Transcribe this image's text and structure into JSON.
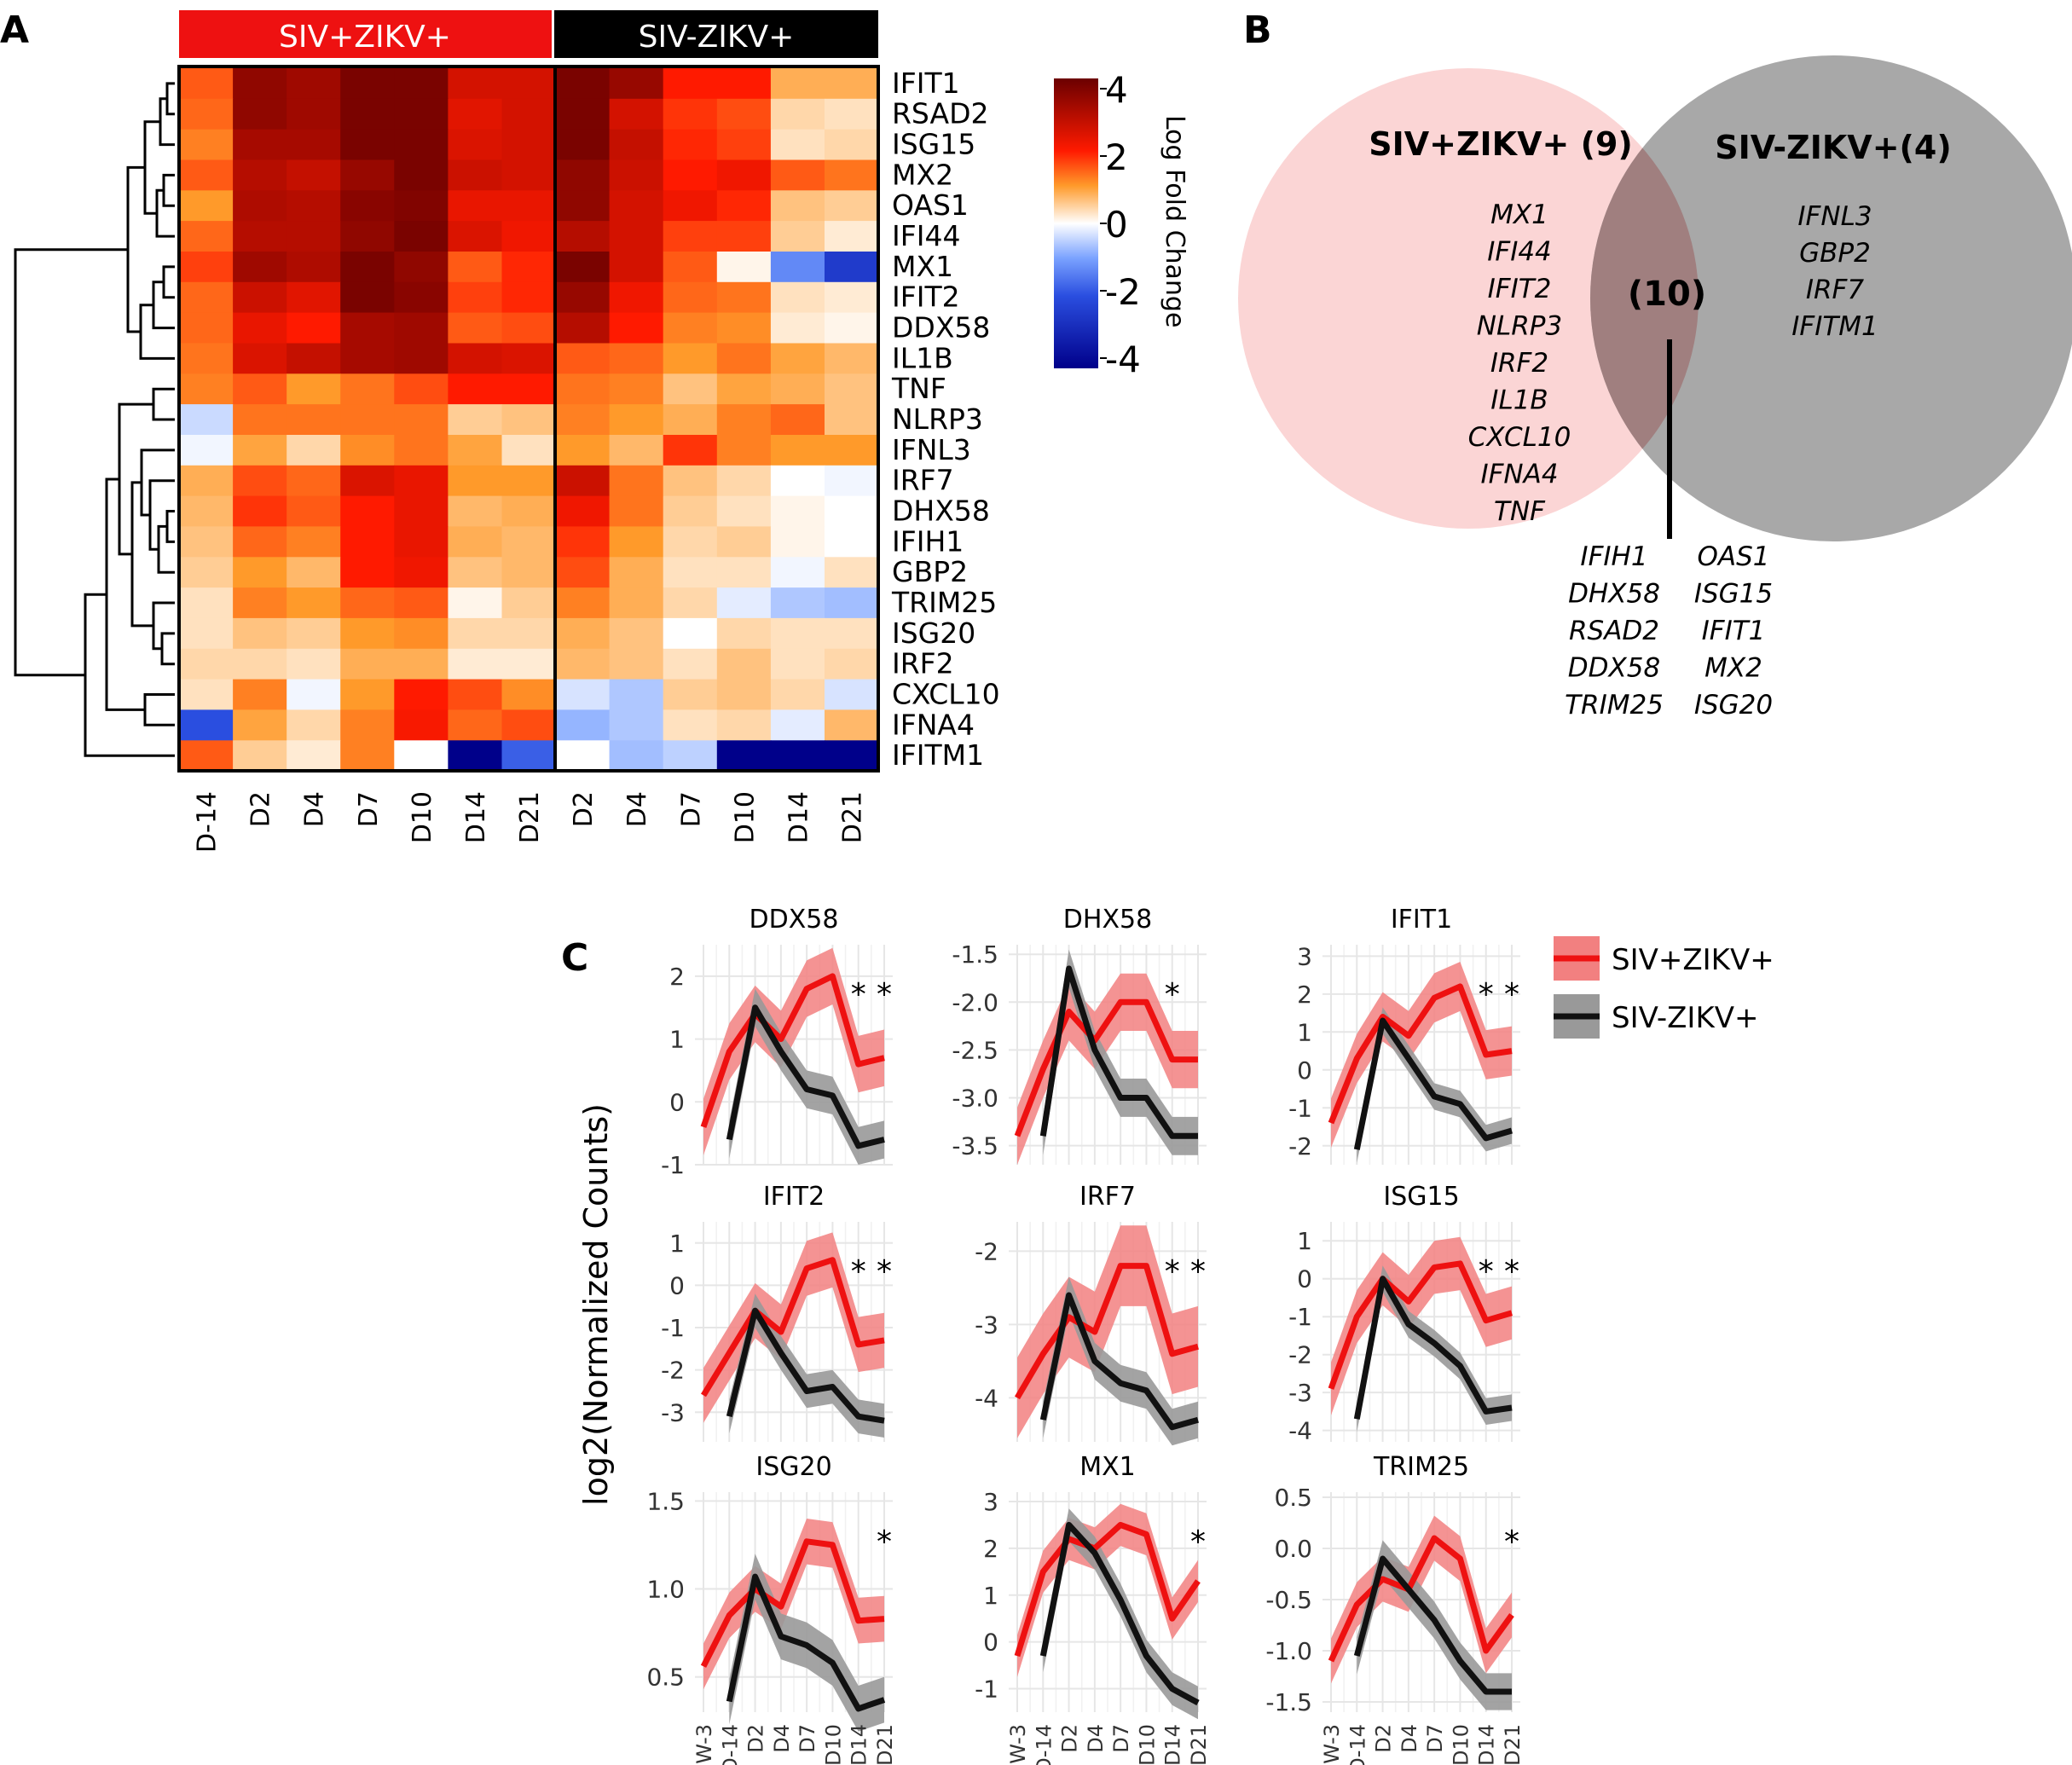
{
  "panel_labels": {
    "a": "A",
    "b": "B",
    "c": "C"
  },
  "colors": {
    "red": "#ee1111",
    "black": "#111111",
    "band_red": "#f28080",
    "band_black": "#999999",
    "venn_left": "#fbd5d5",
    "venn_right": "#a8a8a8",
    "venn_overlap": "#a07f7f"
  },
  "chart_data": [
    {
      "type": "heatmap",
      "group_labels": [
        "SIV+ZIKV+",
        "SIV-ZIKV+"
      ],
      "columns": [
        "D-14",
        "D2",
        "D4",
        "D7",
        "D10",
        "D14",
        "D21",
        "D2",
        "D4",
        "D7",
        "D10",
        "D14",
        "D21"
      ],
      "rows": [
        "IFIT1",
        "RSAD2",
        "ISG15",
        "MX2",
        "OAS1",
        "IFI44",
        "MX1",
        "IFIT2",
        "DDX58",
        "IL1B",
        "TNF",
        "NLRP3",
        "IFNL3",
        "IRF7",
        "DHX58",
        "IFIH1",
        "GBP2",
        "TRIM25",
        "ISG20",
        "IRF2",
        "CXCL10",
        "IFNA4",
        "IFITM1"
      ],
      "values": [
        [
          1.5,
          3.5,
          3.3,
          3.8,
          3.8,
          2.6,
          2.6,
          3.8,
          3.4,
          2.0,
          2.0,
          0.8,
          0.8
        ],
        [
          1.4,
          3.5,
          3.3,
          3.8,
          3.8,
          2.4,
          2.6,
          3.8,
          2.6,
          1.8,
          1.6,
          0.4,
          0.3
        ],
        [
          1.2,
          3.2,
          3.2,
          3.8,
          3.8,
          2.5,
          2.6,
          3.8,
          2.8,
          1.9,
          1.7,
          0.3,
          0.4
        ],
        [
          1.5,
          3.0,
          2.8,
          3.4,
          3.8,
          2.7,
          2.6,
          3.5,
          2.7,
          2.0,
          2.2,
          1.5,
          1.3
        ],
        [
          1.0,
          3.1,
          3.0,
          3.6,
          3.7,
          2.3,
          2.3,
          3.5,
          2.6,
          2.2,
          1.9,
          0.6,
          0.5
        ],
        [
          1.4,
          3.0,
          3.0,
          3.5,
          3.8,
          2.5,
          2.2,
          3.0,
          2.6,
          1.7,
          1.7,
          0.5,
          0.2
        ],
        [
          1.7,
          3.3,
          3.1,
          3.8,
          3.5,
          1.5,
          1.9,
          3.8,
          2.6,
          1.5,
          0.1,
          -1.3,
          -2.5
        ],
        [
          1.4,
          2.7,
          2.4,
          3.8,
          3.6,
          1.7,
          1.9,
          3.4,
          2.2,
          1.4,
          1.3,
          0.3,
          0.2
        ],
        [
          1.4,
          2.3,
          2.0,
          3.2,
          3.3,
          1.5,
          1.6,
          3.0,
          2.0,
          1.2,
          1.1,
          0.2,
          0.1
        ],
        [
          1.3,
          2.5,
          2.8,
          3.2,
          3.3,
          2.6,
          2.5,
          1.5,
          1.4,
          1.0,
          1.3,
          0.9,
          0.7
        ],
        [
          1.2,
          1.5,
          1.0,
          1.3,
          1.6,
          2.0,
          2.0,
          1.3,
          1.2,
          0.6,
          0.9,
          0.8,
          0.6
        ],
        [
          -0.4,
          1.3,
          1.3,
          1.3,
          1.3,
          0.5,
          0.6,
          1.2,
          1.0,
          0.8,
          1.2,
          1.4,
          0.6
        ],
        [
          -0.1,
          0.9,
          0.4,
          1.1,
          1.3,
          0.9,
          0.3,
          1.0,
          0.7,
          1.8,
          1.2,
          1.0,
          1.0
        ],
        [
          0.8,
          1.6,
          1.4,
          2.5,
          2.3,
          1.0,
          1.0,
          2.7,
          1.3,
          0.6,
          0.4,
          0.0,
          -0.1
        ],
        [
          0.7,
          1.8,
          1.5,
          2.0,
          2.3,
          0.7,
          0.8,
          2.2,
          1.3,
          0.5,
          0.3,
          0.1,
          0.0
        ],
        [
          0.6,
          1.4,
          1.2,
          2.0,
          2.3,
          0.8,
          0.7,
          1.8,
          1.0,
          0.4,
          0.5,
          0.1,
          0.0
        ],
        [
          0.5,
          1.0,
          0.7,
          2.0,
          2.2,
          0.6,
          0.7,
          1.6,
          0.8,
          0.3,
          0.3,
          -0.1,
          0.3
        ],
        [
          0.3,
          1.2,
          1.0,
          1.4,
          1.5,
          0.1,
          0.5,
          1.2,
          0.8,
          0.4,
          -0.2,
          -0.6,
          -0.7
        ],
        [
          0.3,
          0.6,
          0.5,
          1.0,
          1.1,
          0.4,
          0.4,
          0.8,
          0.6,
          0.0,
          0.4,
          0.3,
          0.3
        ],
        [
          0.4,
          0.4,
          0.3,
          0.8,
          0.8,
          0.2,
          0.2,
          0.7,
          0.6,
          0.3,
          0.6,
          0.3,
          0.4
        ],
        [
          0.3,
          1.2,
          -0.1,
          1.0,
          2.0,
          1.6,
          1.1,
          -0.3,
          -0.6,
          0.5,
          0.6,
          0.4,
          -0.3
        ],
        [
          -2.0,
          0.9,
          0.4,
          1.2,
          2.1,
          1.4,
          1.6,
          -0.8,
          -0.6,
          0.3,
          0.4,
          -0.2,
          0.7
        ],
        [
          1.5,
          0.5,
          0.2,
          1.2,
          0.0,
          -4.0,
          -1.8,
          0.0,
          -0.7,
          -0.5,
          -4.0,
          -4.0,
          -4.0
        ]
      ],
      "legend": {
        "title": "Log Fold Change",
        "ticks": [
          "4",
          "2",
          "0",
          "-2",
          "-4"
        ],
        "range": [
          -4,
          4
        ]
      }
    },
    {
      "type": "line",
      "ylabel": "log2(Normalized Counts)",
      "x": [
        "W-3",
        "D-14",
        "D2",
        "D4",
        "D7",
        "D10",
        "D14",
        "D21"
      ],
      "legend": [
        "SIV+ZIKV+",
        "SIV-ZIKV+"
      ],
      "panels": [
        {
          "title": "DDX58",
          "ylim": [
            -1.0,
            2.5
          ],
          "yticks": [
            "-1",
            "0",
            "1",
            "2"
          ],
          "red": [
            -0.4,
            0.8,
            1.4,
            1.0,
            1.8,
            2.0,
            0.6,
            0.7
          ],
          "red_band": 0.45,
          "black": [
            null,
            -0.6,
            1.5,
            0.8,
            0.2,
            0.1,
            -0.7,
            -0.6
          ],
          "black_band": 0.3,
          "stars": [
            6,
            7
          ]
        },
        {
          "title": "DHX58",
          "ylim": [
            -3.7,
            -1.4
          ],
          "yticks": [
            "-1.5",
            "-2.0",
            "-2.5",
            "-3.0",
            "-3.5"
          ],
          "red": [
            -3.4,
            -2.7,
            -2.1,
            -2.4,
            -2.0,
            -2.0,
            -2.6,
            -2.6
          ],
          "red_band": 0.3,
          "black": [
            null,
            -3.4,
            -1.65,
            -2.5,
            -3.0,
            -3.0,
            -3.4,
            -3.4
          ],
          "black_band": 0.2,
          "stars": [
            6
          ]
        },
        {
          "title": "IFIT1",
          "ylim": [
            -2.5,
            3.3
          ],
          "yticks": [
            "3",
            "2",
            "1",
            "0",
            "-1",
            "-2"
          ],
          "red": [
            -1.4,
            0.3,
            1.4,
            0.9,
            1.9,
            2.2,
            0.4,
            0.5
          ],
          "red_band": 0.65,
          "black": [
            null,
            -2.1,
            1.3,
            0.3,
            -0.7,
            -0.9,
            -1.8,
            -1.6
          ],
          "black_band": 0.35,
          "stars": [
            6,
            7
          ]
        },
        {
          "title": "IFIT2",
          "ylim": [
            -3.7,
            1.5
          ],
          "yticks": [
            "1",
            "0",
            "-1",
            "-2",
            "-3"
          ],
          "red": [
            -2.6,
            -1.6,
            -0.6,
            -1.1,
            0.4,
            0.6,
            -1.4,
            -1.3
          ],
          "red_band": 0.65,
          "black": [
            null,
            -3.1,
            -0.6,
            -1.6,
            -2.5,
            -2.4,
            -3.1,
            -3.2
          ],
          "black_band": 0.4,
          "stars": [
            6,
            7
          ]
        },
        {
          "title": "IRF7",
          "ylim": [
            -4.6,
            -1.6
          ],
          "yticks": [
            "-2",
            "-3",
            "-4"
          ],
          "red": [
            -4.0,
            -3.4,
            -2.9,
            -3.1,
            -2.2,
            -2.2,
            -3.4,
            -3.3
          ],
          "red_band": 0.55,
          "black": [
            null,
            -4.3,
            -2.6,
            -3.5,
            -3.8,
            -3.9,
            -4.4,
            -4.3
          ],
          "black_band": 0.25,
          "stars": [
            6,
            7
          ]
        },
        {
          "title": "ISG15",
          "ylim": [
            -4.3,
            1.5
          ],
          "yticks": [
            "1",
            "0",
            "-1",
            "-2",
            "-3",
            "-4"
          ],
          "red": [
            -2.9,
            -1.0,
            0.0,
            -0.6,
            0.3,
            0.4,
            -1.1,
            -0.9
          ],
          "red_band": 0.7,
          "black": [
            null,
            -3.7,
            0.0,
            -1.2,
            -1.7,
            -2.3,
            -3.5,
            -3.4
          ],
          "black_band": 0.35,
          "stars": [
            6,
            7
          ]
        },
        {
          "title": "ISG20",
          "ylim": [
            0.3,
            1.55
          ],
          "yticks": [
            "1.5",
            "1.0",
            "0.5"
          ],
          "red": [
            0.56,
            0.85,
            1.0,
            0.9,
            1.27,
            1.25,
            0.82,
            0.83
          ],
          "red_band": 0.13,
          "black": [
            null,
            0.36,
            1.07,
            0.73,
            0.68,
            0.58,
            0.32,
            0.37
          ],
          "black_band": 0.13,
          "stars": [
            7
          ]
        },
        {
          "title": "MX1",
          "ylim": [
            -1.5,
            3.2
          ],
          "yticks": [
            "3",
            "2",
            "1",
            "0",
            "-1"
          ],
          "red": [
            -0.3,
            1.5,
            2.2,
            2.0,
            2.5,
            2.3,
            0.5,
            1.3
          ],
          "red_band": 0.45,
          "black": [
            null,
            -0.3,
            2.5,
            1.9,
            0.9,
            -0.3,
            -1.0,
            -1.3
          ],
          "black_band": 0.35,
          "stars": [
            7
          ]
        },
        {
          "title": "TRIM25",
          "ylim": [
            -1.6,
            0.55
          ],
          "yticks": [
            "0.5",
            "0.0",
            "-0.5",
            "-1.0",
            "-1.5"
          ],
          "red": [
            -1.1,
            -0.55,
            -0.3,
            -0.4,
            0.1,
            -0.1,
            -1.0,
            -0.65
          ],
          "red_band": 0.22,
          "black": [
            null,
            -1.05,
            -0.1,
            -0.4,
            -0.7,
            -1.1,
            -1.4,
            -1.4
          ],
          "black_band": 0.18,
          "stars": [
            7
          ]
        }
      ]
    }
  ],
  "venn": {
    "left_title": "SIV+ZIKV+ (9)",
    "right_title": "SIV-ZIKV+(4)",
    "overlap_count": "(10)",
    "left_genes": [
      "MX1",
      "IFI44",
      "IFIT2",
      "NLRP3",
      "IRF2",
      "IL1B",
      "CXCL10",
      "IFNA4",
      "TNF"
    ],
    "right_genes": [
      "IFNL3",
      "GBP2",
      "IRF7",
      "IFITM1"
    ],
    "overlap_col1": [
      "IFIH1",
      "DHX58",
      "RSAD2",
      "DDX58",
      "TRIM25"
    ],
    "overlap_col2": [
      "OAS1",
      "ISG15",
      "IFIT1",
      "MX2",
      "ISG20"
    ]
  }
}
